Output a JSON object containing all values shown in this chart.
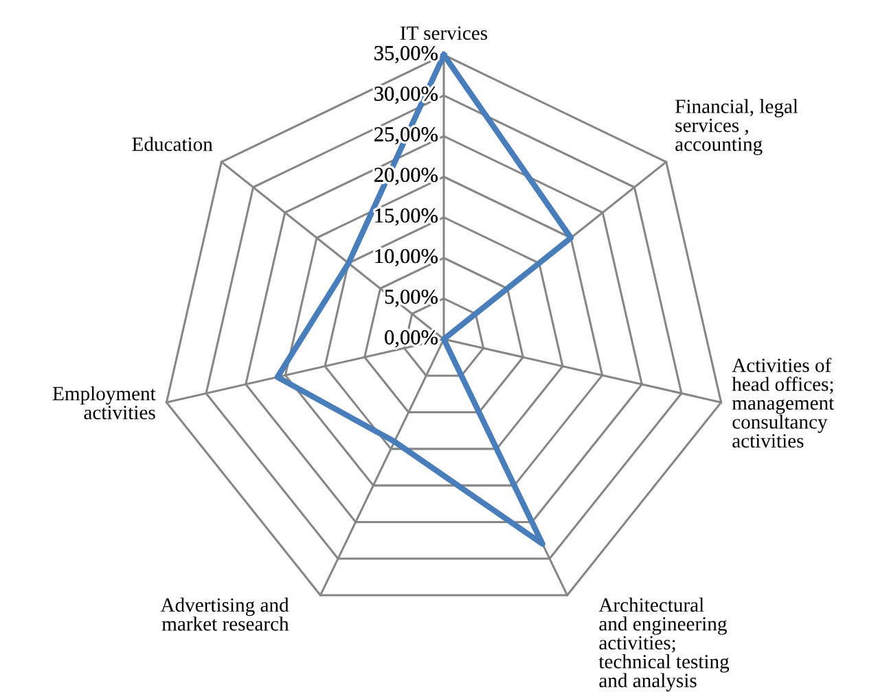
{
  "chart_data": {
    "type": "radar",
    "categories": [
      "IT services",
      "Financial, legal\nservices ,\naccounting",
      "Activities of\nhead offices;\nmanagement\nconsultancy\nactivities",
      "Architectural\nand engineering\nactivities;\ntechnical testing\nand analysis",
      "Advertising and\nmarket research",
      "Employment\nactivities",
      "Education"
    ],
    "series": [
      {
        "color": "#4a7ebb",
        "values": [
          35,
          20,
          0,
          28,
          14,
          21,
          15
        ]
      }
    ],
    "ylim": [
      0,
      35
    ],
    "yticks": [
      {
        "value": 0,
        "label": "0,00%"
      },
      {
        "value": 5,
        "label": "5,00%"
      },
      {
        "value": 10,
        "label": "10,00%"
      },
      {
        "value": 15,
        "label": "15,00%"
      },
      {
        "value": 20,
        "label": "20,00%"
      },
      {
        "value": 25,
        "label": "25,00%"
      },
      {
        "value": 30,
        "label": "30,00%"
      },
      {
        "value": 35,
        "label": "35,00%"
      }
    ],
    "grid": true
  }
}
